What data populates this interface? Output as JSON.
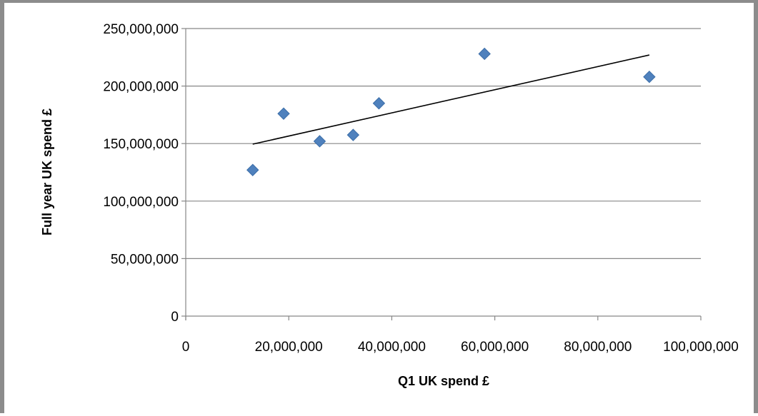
{
  "chart_data": {
    "type": "scatter",
    "xlabel": "Q1 UK spend £",
    "ylabel": "Full year UK spend £",
    "xlim": [
      0,
      100000000
    ],
    "ylim": [
      0,
      250000000
    ],
    "x_ticks": [
      0,
      20000000,
      40000000,
      60000000,
      80000000,
      100000000
    ],
    "x_tick_labels": [
      "0",
      "20,000,000",
      "40,000,000",
      "60,000,000",
      "80,000,000",
      "100,000,000"
    ],
    "y_ticks": [
      0,
      50000000,
      100000000,
      150000000,
      200000000,
      250000000
    ],
    "y_tick_labels": [
      "0",
      "50,000,000",
      "100,000,000",
      "150,000,000",
      "200,000,000",
      "250,000,000"
    ],
    "grid": "horizontal",
    "legend": "none",
    "series": [
      {
        "marker": "diamond",
        "color": "#4F81BD",
        "points": [
          {
            "x": 13000000,
            "y": 127000000
          },
          {
            "x": 19000000,
            "y": 176000000
          },
          {
            "x": 26000000,
            "y": 152000000
          },
          {
            "x": 32500000,
            "y": 157500000
          },
          {
            "x": 37500000,
            "y": 185000000
          },
          {
            "x": 58000000,
            "y": 228000000
          },
          {
            "x": 90000000,
            "y": 208000000
          }
        ]
      }
    ],
    "trendline": {
      "type": "linear",
      "color": "#000000",
      "points": [
        {
          "x": 13000000,
          "y": 149500000
        },
        {
          "x": 90000000,
          "y": 227000000
        }
      ]
    }
  }
}
